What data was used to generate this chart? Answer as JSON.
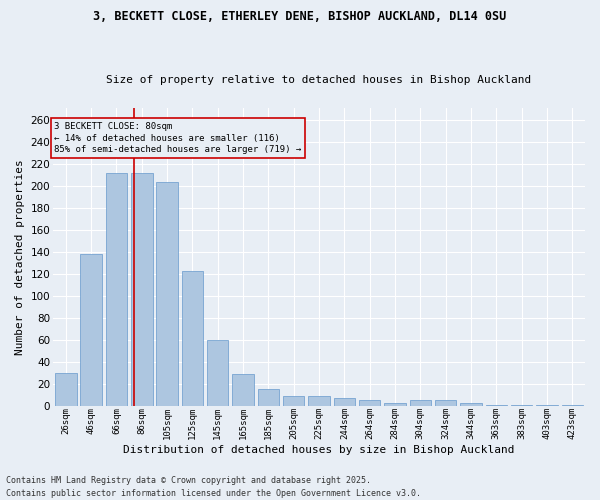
{
  "title1": "3, BECKETT CLOSE, ETHERLEY DENE, BISHOP AUCKLAND, DL14 0SU",
  "title2": "Size of property relative to detached houses in Bishop Auckland",
  "xlabel": "Distribution of detached houses by size in Bishop Auckland",
  "ylabel": "Number of detached properties",
  "categories": [
    "26sqm",
    "46sqm",
    "66sqm",
    "86sqm",
    "105sqm",
    "125sqm",
    "145sqm",
    "165sqm",
    "185sqm",
    "205sqm",
    "225sqm",
    "244sqm",
    "264sqm",
    "284sqm",
    "304sqm",
    "324sqm",
    "344sqm",
    "363sqm",
    "383sqm",
    "403sqm",
    "423sqm"
  ],
  "values": [
    30,
    138,
    211,
    211,
    203,
    122,
    60,
    29,
    15,
    9,
    9,
    7,
    5,
    3,
    5,
    5,
    3,
    1,
    1,
    1,
    1
  ],
  "bar_color": "#adc6e0",
  "bar_edge_color": "#6699cc",
  "background_color": "#e8eef5",
  "grid_color": "#ffffff",
  "marker_label": "3 BECKETT CLOSE: 80sqm",
  "marker_line1": "← 14% of detached houses are smaller (116)",
  "marker_line2": "85% of semi-detached houses are larger (719) →",
  "marker_color": "#cc0000",
  "ylim": [
    0,
    270
  ],
  "yticks": [
    0,
    20,
    40,
    60,
    80,
    100,
    120,
    140,
    160,
    180,
    200,
    220,
    240,
    260
  ],
  "footnote1": "Contains HM Land Registry data © Crown copyright and database right 2025.",
  "footnote2": "Contains public sector information licensed under the Open Government Licence v3.0."
}
